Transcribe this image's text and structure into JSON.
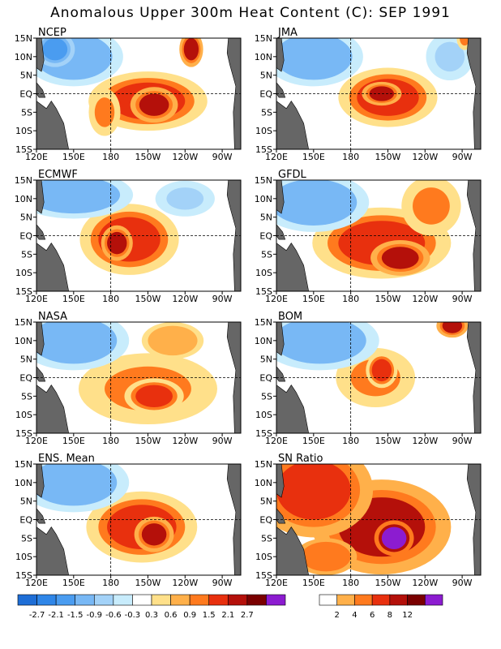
{
  "title": "Anomalous Upper 300m Heat Content (C): SEP 1991",
  "colors": {
    "ocean": "#ffffff",
    "land": "#666666",
    "frame": "#000000",
    "grid": "#000000"
  },
  "anomaly_scale": {
    "labels": [
      "-2.7",
      "-2.1",
      "-1.5",
      "-0.9",
      "-0.6",
      "-0.3",
      "0.3",
      "0.6",
      "0.9",
      "1.5",
      "2.1",
      "2.7"
    ],
    "colors": [
      "#1e6ed6",
      "#2f86e8",
      "#4a9cf0",
      "#78b8f5",
      "#a3d2f8",
      "#c8ecfc",
      "#ffffff",
      "#ffe08a",
      "#ffb04a",
      "#ff7a1e",
      "#e8300e",
      "#b4100a",
      "#7a0000",
      "#8c1cd0"
    ]
  },
  "snr_scale": {
    "labels": [
      "2",
      "4",
      "6",
      "8",
      "12"
    ],
    "colors": [
      "#ffffff",
      "#ffb04a",
      "#ff7a1e",
      "#e8300e",
      "#b4100a",
      "#7a0000",
      "#8c1cd0"
    ]
  },
  "chart_data": [
    {
      "type": "heatmap",
      "title": "NCEP",
      "x_ticks": [
        "120E",
        "150E",
        "180",
        "150W",
        "120W",
        "90W"
      ],
      "y_ticks": [
        "15N",
        "10N",
        "5N",
        "EQ",
        "5S",
        "10S",
        "15S"
      ],
      "features": [
        {
          "lon": 210,
          "lat": -2,
          "v": 1.5,
          "rx": 30,
          "ry": 5
        },
        {
          "lon": 215,
          "lat": -3,
          "v": 2.1,
          "rx": 12,
          "ry": 3
        },
        {
          "lon": 245,
          "lat": 12,
          "v": 2.1,
          "rx": 6,
          "ry": 3
        },
        {
          "lon": 150,
          "lat": 10,
          "v": -1.5,
          "rx": 25,
          "ry": 5
        },
        {
          "lon": 135,
          "lat": 12,
          "v": -2.1,
          "rx": 10,
          "ry": 3
        },
        {
          "lon": 175,
          "lat": -5,
          "v": 0.9,
          "rx": 8,
          "ry": 4
        }
      ]
    },
    {
      "type": "heatmap",
      "title": "JMA",
      "x_ticks": [
        "120E",
        "150E",
        "180",
        "150W",
        "120W",
        "90W"
      ],
      "y_ticks": [
        "15N",
        "10N",
        "5N",
        "EQ",
        "5S",
        "10S",
        "15S"
      ],
      "features": [
        {
          "lon": 210,
          "lat": -1,
          "v": 1.5,
          "rx": 25,
          "ry": 5
        },
        {
          "lon": 205,
          "lat": 0,
          "v": 2.1,
          "rx": 10,
          "ry": 2
        },
        {
          "lon": 150,
          "lat": 10,
          "v": -1.5,
          "rx": 25,
          "ry": 5
        },
        {
          "lon": 260,
          "lat": 10,
          "v": -0.9,
          "rx": 12,
          "ry": 4
        },
        {
          "lon": 272,
          "lat": 15,
          "v": 0.9,
          "rx": 4,
          "ry": 2
        }
      ]
    },
    {
      "type": "heatmap",
      "title": "ECMWF",
      "x_ticks": [
        "120E",
        "150E",
        "180",
        "150W",
        "120W",
        "90W"
      ],
      "y_ticks": [
        "15N",
        "10N",
        "5N",
        "EQ",
        "5S",
        "10S",
        "15S"
      ],
      "features": [
        {
          "lon": 195,
          "lat": -1,
          "v": 1.5,
          "rx": 25,
          "ry": 6
        },
        {
          "lon": 185,
          "lat": -2,
          "v": 2.1,
          "rx": 8,
          "ry": 3
        },
        {
          "lon": 150,
          "lat": 11,
          "v": -1.5,
          "rx": 30,
          "ry": 4
        },
        {
          "lon": 240,
          "lat": 10,
          "v": -0.9,
          "rx": 15,
          "ry": 3
        }
      ]
    },
    {
      "type": "heatmap",
      "title": "GFDL",
      "x_ticks": [
        "120E",
        "150E",
        "180",
        "150W",
        "120W",
        "90W"
      ],
      "y_ticks": [
        "15N",
        "10N",
        "5N",
        "EQ",
        "5S",
        "10S",
        "15S"
      ],
      "features": [
        {
          "lon": 205,
          "lat": -2,
          "v": 1.5,
          "rx": 35,
          "ry": 6
        },
        {
          "lon": 220,
          "lat": -6,
          "v": 2.1,
          "rx": 15,
          "ry": 3
        },
        {
          "lon": 245,
          "lat": 8,
          "v": 0.9,
          "rx": 15,
          "ry": 5
        },
        {
          "lon": 150,
          "lat": 9,
          "v": -1.5,
          "rx": 28,
          "ry": 5
        }
      ]
    },
    {
      "type": "heatmap",
      "title": "NASA",
      "x_ticks": [
        "120E",
        "150E",
        "180",
        "150W",
        "120W",
        "90W"
      ],
      "y_ticks": [
        "15N",
        "10N",
        "5N",
        "EQ",
        "5S",
        "10S",
        "15S"
      ],
      "features": [
        {
          "lon": 210,
          "lat": -3,
          "v": 0.9,
          "rx": 35,
          "ry": 6
        },
        {
          "lon": 215,
          "lat": -5,
          "v": 1.5,
          "rx": 15,
          "ry": 3
        },
        {
          "lon": 150,
          "lat": 10,
          "v": -1.5,
          "rx": 28,
          "ry": 5
        },
        {
          "lon": 230,
          "lat": 10,
          "v": 0.6,
          "rx": 20,
          "ry": 4
        }
      ]
    },
    {
      "type": "heatmap",
      "title": "BOM",
      "x_ticks": [
        "120E",
        "150E",
        "180",
        "150W",
        "120W",
        "90W"
      ],
      "y_ticks": [
        "15N",
        "10N",
        "5N",
        "EQ",
        "5S",
        "10S",
        "15S"
      ],
      "features": [
        {
          "lon": 200,
          "lat": 0,
          "v": 0.9,
          "rx": 20,
          "ry": 5
        },
        {
          "lon": 205,
          "lat": 2,
          "v": 1.5,
          "rx": 8,
          "ry": 3
        },
        {
          "lon": 155,
          "lat": 10,
          "v": -1.5,
          "rx": 30,
          "ry": 5
        },
        {
          "lon": 262,
          "lat": 14,
          "v": 2.1,
          "rx": 8,
          "ry": 2
        }
      ]
    },
    {
      "type": "heatmap",
      "title": "ENS. Mean",
      "x_ticks": [
        "120E",
        "150E",
        "180",
        "150W",
        "120W",
        "90W"
      ],
      "y_ticks": [
        "15N",
        "10N",
        "5N",
        "EQ",
        "5S",
        "10S",
        "15S"
      ],
      "features": [
        {
          "lon": 205,
          "lat": -2,
          "v": 1.5,
          "rx": 28,
          "ry": 6
        },
        {
          "lon": 215,
          "lat": -4,
          "v": 2.1,
          "rx": 10,
          "ry": 3
        },
        {
          "lon": 150,
          "lat": 10,
          "v": -1.5,
          "rx": 28,
          "ry": 5
        }
      ]
    },
    {
      "type": "heatmap",
      "title": "SN Ratio",
      "x_ticks": [
        "120E",
        "150E",
        "180",
        "150W",
        "120W",
        "90W"
      ],
      "y_ticks": [
        "15N",
        "10N",
        "5N",
        "EQ",
        "5S",
        "10S",
        "15S"
      ],
      "features": [
        {
          "lon": 205,
          "lat": -2,
          "v": 8,
          "rx": 35,
          "ry": 8
        },
        {
          "lon": 150,
          "lat": 8,
          "v": 6,
          "rx": 30,
          "ry": 8
        },
        {
          "lon": 215,
          "lat": -5,
          "v": 12,
          "rx": 10,
          "ry": 3
        },
        {
          "lon": 160,
          "lat": -10,
          "v": 4,
          "rx": 20,
          "ry": 4
        }
      ]
    }
  ]
}
